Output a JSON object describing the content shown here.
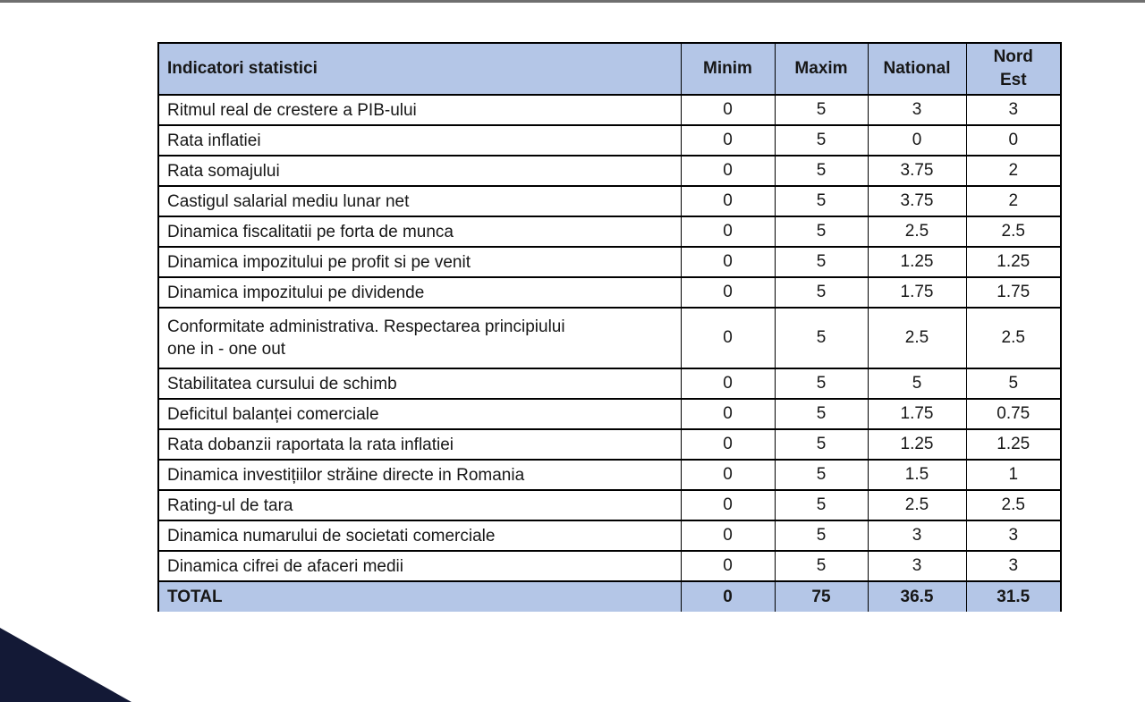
{
  "page": {
    "top_bar_color": "#6f6f6f",
    "corner_triangle_color": "#131936",
    "background": "#ffffff"
  },
  "table": {
    "header_bg": "#b4c6e7",
    "border_color": "#000000",
    "header": {
      "indicator": "Indicatori statistici",
      "minim": "Minim",
      "maxim": "Maxim",
      "national": "National",
      "nord_est": "Nord\nEst"
    },
    "rows": [
      {
        "label": "Ritmul real de crestere a PIB-ului",
        "minim": "0",
        "maxim": "5",
        "national": "3",
        "nord_est": "3"
      },
      {
        "label": "Rata inflatiei",
        "minim": "0",
        "maxim": "5",
        "national": "0",
        "nord_est": "0"
      },
      {
        "label": "Rata somajului",
        "minim": "0",
        "maxim": "5",
        "national": "3.75",
        "nord_est": "2"
      },
      {
        "label": "Castigul salarial mediu lunar net",
        "minim": "0",
        "maxim": "5",
        "national": "3.75",
        "nord_est": "2"
      },
      {
        "label": "Dinamica fiscalitatii pe forta de munca",
        "minim": "0",
        "maxim": "5",
        "national": "2.5",
        "nord_est": "2.5"
      },
      {
        "label": "Dinamica impozitului pe profit si pe venit",
        "minim": "0",
        "maxim": "5",
        "national": "1.25",
        "nord_est": "1.25"
      },
      {
        "label": "Dinamica impozitului pe dividende",
        "minim": "0",
        "maxim": "5",
        "national": "1.75",
        "nord_est": "1.75"
      },
      {
        "label": "Conformitate administrativa. Respectarea principiului\none in - one out",
        "minim": "0",
        "maxim": "5",
        "national": "2.5",
        "nord_est": "2.5"
      },
      {
        "label": "Stabilitatea cursului de schimb",
        "minim": "0",
        "maxim": "5",
        "national": "5",
        "nord_est": "5"
      },
      {
        "label": "Deficitul balanței comerciale",
        "minim": "0",
        "maxim": "5",
        "national": "1.75",
        "nord_est": "0.75"
      },
      {
        "label": "Rata dobanzii raportata la rata inflatiei",
        "minim": "0",
        "maxim": "5",
        "national": "1.25",
        "nord_est": "1.25"
      },
      {
        "label": "Dinamica investițiilor străine directe in Romania",
        "minim": "0",
        "maxim": "5",
        "national": "1.5",
        "nord_est": "1"
      },
      {
        "label": "Rating-ul de tara",
        "minim": "0",
        "maxim": "5",
        "national": "2.5",
        "nord_est": "2.5"
      },
      {
        "label": "Dinamica numarului de societati comerciale",
        "minim": "0",
        "maxim": "5",
        "national": "3",
        "nord_est": "3"
      },
      {
        "label": "Dinamica cifrei de afaceri medii",
        "minim": "0",
        "maxim": "5",
        "national": "3",
        "nord_est": "3"
      }
    ],
    "total": {
      "label": "TOTAL",
      "minim": "0",
      "maxim": "75",
      "national": "36.5",
      "nord_est": "31.5"
    }
  }
}
